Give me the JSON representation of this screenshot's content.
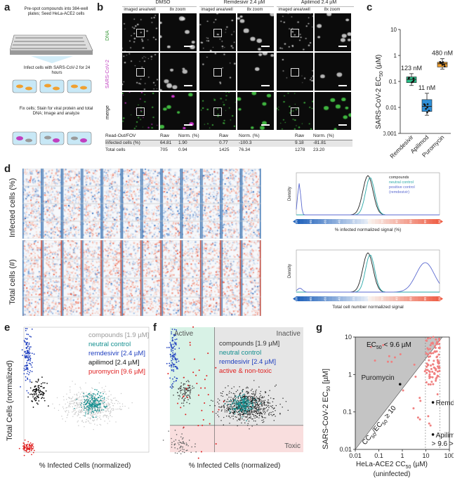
{
  "panels": {
    "a": "a",
    "b": "b",
    "c": "c",
    "d": "d",
    "e": "e",
    "f": "f",
    "g": "g"
  },
  "a": {
    "step1": "Pre-spot compounds into 384-well plates; Seed HeLa-ACE2 cells",
    "step2": "Infect cells with SARS-CoV-2 for 24 hours",
    "step3": "Fix cells; Stain for viral protein and total DNA; Image and analyze"
  },
  "b": {
    "conditions": [
      "DMSO",
      "Remdesivir 2.4 µM",
      "Apilimod 2.4 µM"
    ],
    "col_imaged": "imaged area/well",
    "col_zoom": "8x zoom",
    "row_labels": [
      "DNA",
      "SARS-CoV-2",
      "merge"
    ],
    "table": {
      "header": [
        "Read-Out/FOV",
        "Raw",
        "Norm. (%)",
        "Raw",
        "Norm. (%)",
        "Raw",
        "Norm. (%)"
      ],
      "rows": [
        [
          "Infected cells (%)",
          "64.81",
          "1.90",
          "0.77",
          "-100.3",
          "9.18",
          "-81.81"
        ],
        [
          "Total cells",
          "705",
          "0.94",
          "1425",
          "76.34",
          "1278",
          "23.20"
        ]
      ]
    }
  },
  "c": {
    "ylabel": "SARS-CoV-2 EC50 (µM)",
    "ylabel_pre": "SARS-CoV-2 EC",
    "ylabel_sub": "50",
    "ylabel_unit": "(µM)",
    "categories": [
      "Remdesivir",
      "Apilimod",
      "Puromycin"
    ],
    "annotations": [
      "123 nM",
      "11 nM",
      "480 nM"
    ],
    "yticks": [
      "10",
      "1",
      "0.1",
      "0.01",
      "0.001"
    ],
    "colors": [
      "#2bbf8a",
      "#2e8fd8",
      "#f0a030"
    ]
  },
  "d": {
    "heatmap_labels": [
      "Infected cells (%)",
      "Total cells (#)"
    ],
    "legend": [
      "compounds",
      "neutral control",
      "positive control",
      "(remdesivir)"
    ],
    "density_label": "Density",
    "xlabel_top": "% infected normalized signal (%)",
    "xlabel_bottom": "Total cell number normalized signal",
    "ticks": [
      "-100",
      "-80",
      "-60",
      "-40",
      "-20",
      "0",
      "20",
      "40",
      "60",
      "80",
      "100"
    ]
  },
  "e": {
    "legend": [
      "compounds [1.9 µM]",
      "neutral control",
      "remdesivir [2.4 µM]",
      "apilimod [2.4 µM]",
      "puromycin [9.6 µM]"
    ],
    "xlabel": "% Infected Cells (normalized)",
    "ylabel": "Total Cells (normalized)"
  },
  "f": {
    "regions": [
      "Active",
      "Inactive",
      "Toxic"
    ],
    "legend": [
      "compounds [1.9 µM]",
      "neutral control",
      "remdesivir [2.4 µM]",
      "active & non-toxic"
    ],
    "xlabel": "% Infected Cells (normalized)"
  },
  "g": {
    "title": "EC50 < 9.6 µM",
    "title_pre": "EC",
    "title_sub": "50",
    "title_post": " < 9.6 µM",
    "diag_pre": "CC",
    "diag_sub1": "50",
    "diag_mid": "/EC",
    "diag_sub2": "50",
    "diag_post": " ≥ 10",
    "labels": [
      "Puromycin",
      "Remdesivir",
      "Apilimod",
      "> 9.6 > 40"
    ],
    "ylabel_pre": "SARS-CoV-2 EC",
    "ylabel_sub": "50",
    "ylabel_unit": " [µM]",
    "xlabel": "HeLa-ACE2 CC50 (µM)",
    "xlabel_pre": "HeLa-ACE2 CC",
    "xlabel_sub": "50",
    "xlabel_unit": " (µM)",
    "xlabel2": "(uninfected)",
    "xticks": [
      "0.01",
      "0.1",
      "1",
      "10",
      "100"
    ],
    "yticks": [
      "10",
      "1",
      "0.1",
      "0.01"
    ]
  },
  "chart_data": [
    {
      "type": "box",
      "panel": "c",
      "title": "",
      "categories": [
        "Remdesivir",
        "Apilimod",
        "Puromycin"
      ],
      "medians": [
        0.12,
        0.011,
        0.48
      ],
      "q1": [
        0.09,
        0.007,
        0.36
      ],
      "q3": [
        0.15,
        0.02,
        0.55
      ],
      "min": [
        0.07,
        0.005,
        0.3
      ],
      "max": [
        0.2,
        0.035,
        0.75
      ],
      "ylabel": "SARS-CoV-2 EC50 (µM)",
      "yscale": "log",
      "ylim": [
        0.001,
        10
      ]
    },
    {
      "type": "scatter",
      "panel": "e",
      "title": "",
      "xlabel": "% Infected Cells (normalized)",
      "ylabel": "Total Cells (normalized)",
      "xlim": [
        -100,
        80
      ],
      "ylim": [
        -100,
        180
      ],
      "series": [
        {
          "name": "remdesivir [2.4 µM]",
          "center": [
            -95,
            110
          ]
        },
        {
          "name": "apilimod [2.4 µM]",
          "center": [
            -80,
            35
          ]
        },
        {
          "name": "puromycin [9.6 µM]",
          "center": [
            -93,
            -90
          ]
        },
        {
          "name": "neutral control",
          "center": [
            0,
            10
          ]
        }
      ]
    },
    {
      "type": "scatter",
      "panel": "f",
      "title": "",
      "xlabel": "% Infected Cells (normalized)",
      "xlim": [
        -100,
        80
      ],
      "ylim": [
        -100,
        180
      ],
      "thresholds": {
        "x": -40,
        "y": -40
      }
    },
    {
      "type": "scatter",
      "panel": "g",
      "title": "EC50 < 9.6 µM",
      "xlabel": "HeLa-ACE2 CC50 (µM)",
      "ylabel": "SARS-CoV-2 EC50 [µM]",
      "xscale": "log",
      "yscale": "log",
      "xlim": [
        0.01,
        100
      ],
      "ylim": [
        0.01,
        10
      ],
      "points": [
        {
          "name": "Puromycin",
          "x": 0.8,
          "y": 0.55
        },
        {
          "name": "Remdesivir",
          "x": 20,
          "y": 0.18
        },
        {
          "name": "Apilimod",
          "x": 20,
          "y": 0.025
        }
      ]
    }
  ]
}
